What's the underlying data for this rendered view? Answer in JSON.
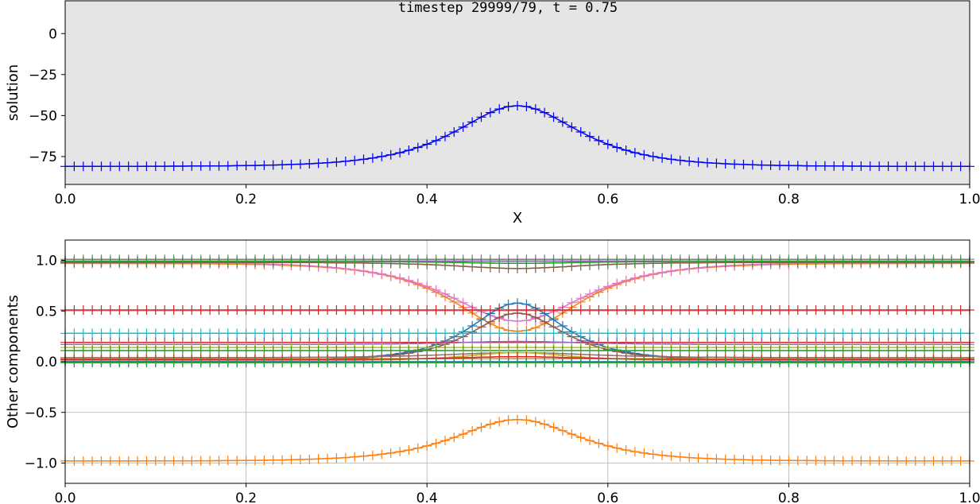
{
  "chart_data": [
    {
      "type": "line",
      "title": "timestep 29999/79, t = 0.75",
      "xlabel": "X",
      "ylabel": "solution",
      "xlim": [
        0.0,
        1.0
      ],
      "ylim": [
        -92,
        20
      ],
      "xticks": [
        "0.0",
        "0.2",
        "0.4",
        "0.6",
        "0.8",
        "1.0"
      ],
      "yticks": [
        "0",
        "−25",
        "−50",
        "−75"
      ],
      "grid": false,
      "background": "#e5e5e5",
      "marker": "+",
      "series": [
        {
          "color": "#0000ff",
          "curve": {
            "base": -81,
            "peak": -44,
            "width": 0.06
          }
        }
      ]
    },
    {
      "type": "line",
      "title": "",
      "xlabel": "",
      "ylabel": "Other components",
      "xlim": [
        0.0,
        1.0
      ],
      "ylim": [
        -1.2,
        1.2
      ],
      "xticks": [
        "0.0",
        "0.2",
        "0.4",
        "0.6",
        "0.8",
        "1.0"
      ],
      "yticks": [
        "1.0",
        "0.5",
        "0.0",
        "−0.5",
        "−1.0"
      ],
      "grid": true,
      "background": "#ffffff",
      "marker": "+",
      "series": [
        {
          "color": "#ff7f0e",
          "curve": {
            "base": -0.98,
            "peak": -0.57,
            "width": 0.06
          }
        },
        {
          "color": "#ff7f0e",
          "curve": {
            "base": 0.97,
            "peak": 0.3,
            "width": 0.06
          }
        },
        {
          "color": "#e377c2",
          "curve": {
            "base": 0.98,
            "peak": 0.4,
            "width": 0.065
          }
        },
        {
          "color": "#1f77b4",
          "curve": {
            "base": 0.02,
            "peak": 0.58,
            "width": 0.045
          }
        },
        {
          "color": "#8c564b",
          "curve": {
            "base": 0.02,
            "peak": 0.48,
            "width": 0.045
          }
        },
        {
          "color": "#8c564b",
          "curve": {
            "base": 0.98,
            "peak": 0.92,
            "width": 0.06
          }
        },
        {
          "color": "#d62728",
          "curve": {
            "base": 0.51,
            "peak": 0.51,
            "width": 0.06
          }
        },
        {
          "color": "#7f7f7f",
          "curve": {
            "base": 1.01,
            "peak": 1.01,
            "width": 0.06
          }
        },
        {
          "color": "#9467bd",
          "curve": {
            "base": 0.99,
            "peak": 0.99,
            "width": 0.06
          }
        },
        {
          "color": "#2ca02c",
          "curve": {
            "base": 0.99,
            "peak": 0.97,
            "width": 0.06
          }
        },
        {
          "color": "#17becf",
          "curve": {
            "base": 0.28,
            "peak": 0.28,
            "width": 0.06
          }
        },
        {
          "color": "#d62728",
          "curve": {
            "base": 0.19,
            "peak": 0.19,
            "width": 0.06
          }
        },
        {
          "color": "#9467bd",
          "curve": {
            "base": 0.17,
            "peak": 0.2,
            "width": 0.06
          }
        },
        {
          "color": "#bcbd22",
          "curve": {
            "base": 0.14,
            "peak": 0.14,
            "width": 0.06
          }
        },
        {
          "color": "#2ca02c",
          "curve": {
            "base": 0.11,
            "peak": 0.11,
            "width": 0.06
          }
        },
        {
          "color": "#7f7f7f",
          "curve": {
            "base": 0.04,
            "peak": 0.09,
            "width": 0.07
          }
        },
        {
          "color": "#bcbd22",
          "curve": {
            "base": 0.01,
            "peak": 0.09,
            "width": 0.05
          }
        },
        {
          "color": "#ff7f0e",
          "curve": {
            "base": 0.03,
            "peak": 0.03,
            "width": 0.06
          }
        },
        {
          "color": "#d62728",
          "curve": {
            "base": 0.02,
            "peak": 0.05,
            "width": 0.06
          }
        },
        {
          "color": "#1f77b4",
          "curve": {
            "base": 0.0,
            "peak": 0.0,
            "width": 0.06
          }
        },
        {
          "color": "#2ca02c",
          "curve": {
            "base": -0.01,
            "peak": -0.01,
            "width": 0.06
          }
        }
      ]
    }
  ]
}
